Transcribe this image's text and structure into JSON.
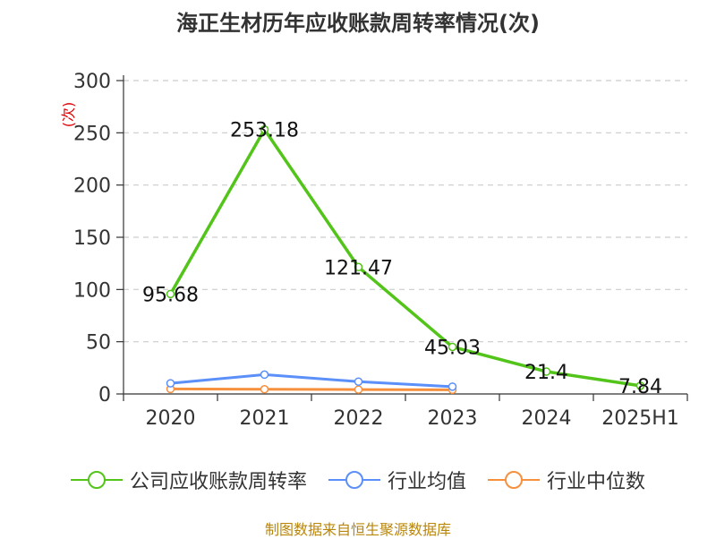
{
  "title": "海正生材历年应收账款周转率情况(次)",
  "source": "制图数据来自恒生聚源数据库",
  "chart_data": {
    "type": "line",
    "title": "海正生材历年应收账款周转率情况(次)",
    "xlabel": "",
    "ylabel": "(次)",
    "ylim": [
      0,
      300
    ],
    "yticks": [
      "0",
      "50",
      "100",
      "150",
      "200",
      "250",
      "300"
    ],
    "categories": [
      "2020",
      "2021",
      "2022",
      "2023",
      "2024",
      "2025H1"
    ],
    "grid": true,
    "legend_position": "bottom",
    "series": [
      {
        "name": "公司应收账款周转率",
        "color": "#52c41a",
        "values": [
          95.68,
          253.18,
          121.47,
          45.03,
          21.4,
          7.84
        ],
        "labels": [
          "95.68",
          "253.18",
          "121.47",
          "45.03",
          "21.4",
          "7.84"
        ]
      },
      {
        "name": "行业均值",
        "color": "#5b8ff9",
        "values": [
          10.2,
          18.5,
          11.8,
          7.0,
          null,
          null
        ]
      },
      {
        "name": "行业中位数",
        "color": "#f6903d",
        "values": [
          4.8,
          4.5,
          4.2,
          4.0,
          null,
          null
        ]
      }
    ]
  }
}
